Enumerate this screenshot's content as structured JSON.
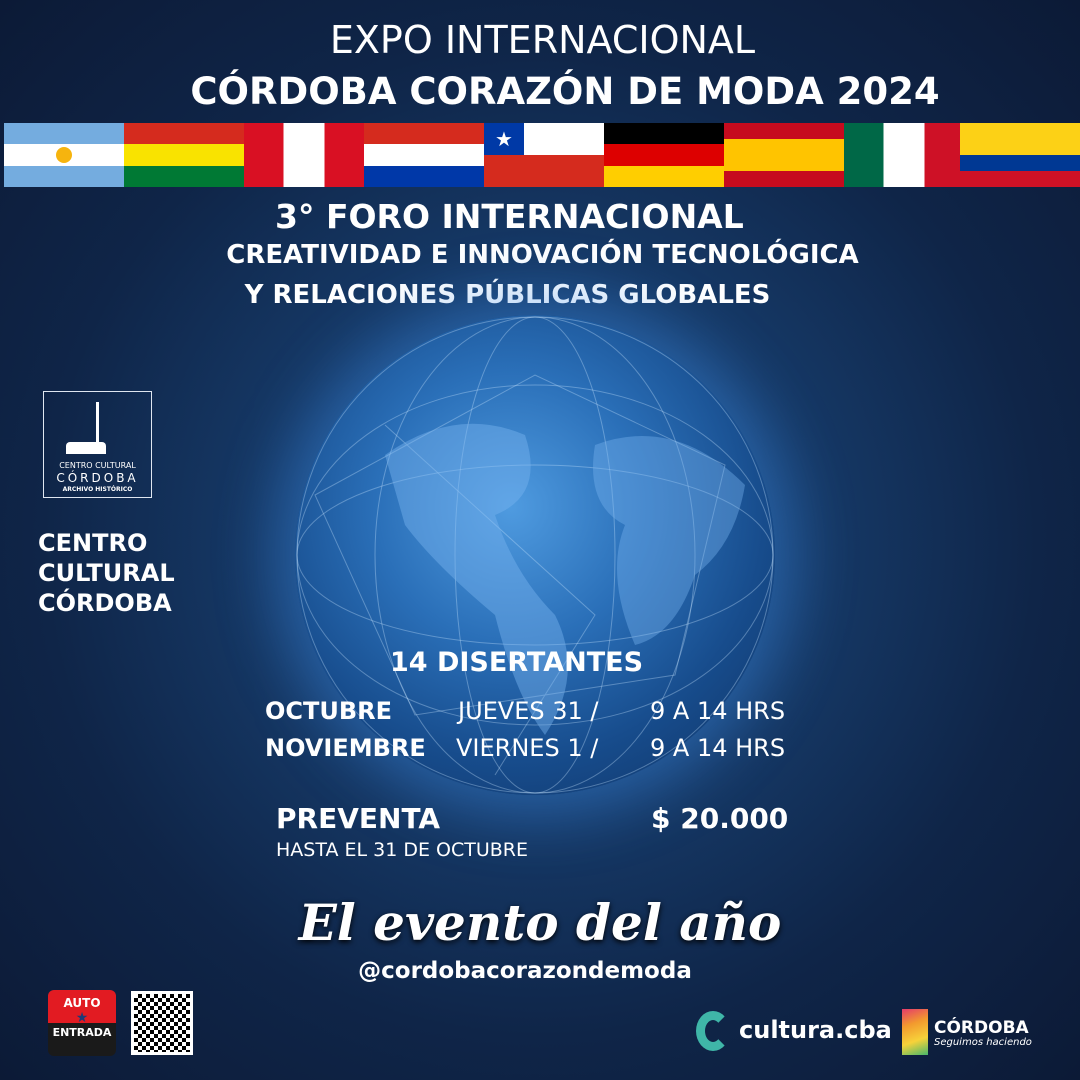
{
  "header": {
    "line1": "EXPO INTERNACIONAL",
    "line2": "CÓRDOBA CORAZÓN DE MODA 2024"
  },
  "flags": [
    "argentina",
    "bolivia",
    "peru",
    "paraguay",
    "chile",
    "germany",
    "spain",
    "mexico",
    "colombia"
  ],
  "forum": {
    "line1": "3°  FORO INTERNACIONAL",
    "line2": "CREATIVIDAD E INNOVACIÓN  TECNOLÓGICA",
    "line3": "Y RELACIONES PÚBLICAS GLOBALES"
  },
  "venue": {
    "logo_line1": "CENTRO CULTURAL",
    "logo_line2": "CÓRDOBA",
    "logo_line3": "ARCHIVO HISTÓRICO",
    "name_line1": "CENTRO",
    "name_line2": "CULTURAL",
    "name_line3": "CÓRDOBA"
  },
  "schedule": {
    "speakers": "14 DISERTANTES",
    "rows": [
      {
        "month": "OCTUBRE",
        "day": "JUEVES  31  /",
        "time": "9 A 14 HRS"
      },
      {
        "month": "NOVIEMBRE",
        "day": "VIERNES   1 /",
        "time": "9 A 14 HRS"
      }
    ]
  },
  "presale": {
    "label": "PREVENTA",
    "until": "HASTA EL 31 DE OCTUBRE",
    "price": "$ 20.000"
  },
  "tagline": "El evento del año",
  "handle": "@cordobacorazondemoda",
  "footer": {
    "ticket_top": "AUTO",
    "ticket_bottom": "ENTRADA",
    "cultura": "cultura.cba",
    "cordoba": "CÓRDOBA",
    "cordoba_sub": "Seguimos haciendo"
  }
}
